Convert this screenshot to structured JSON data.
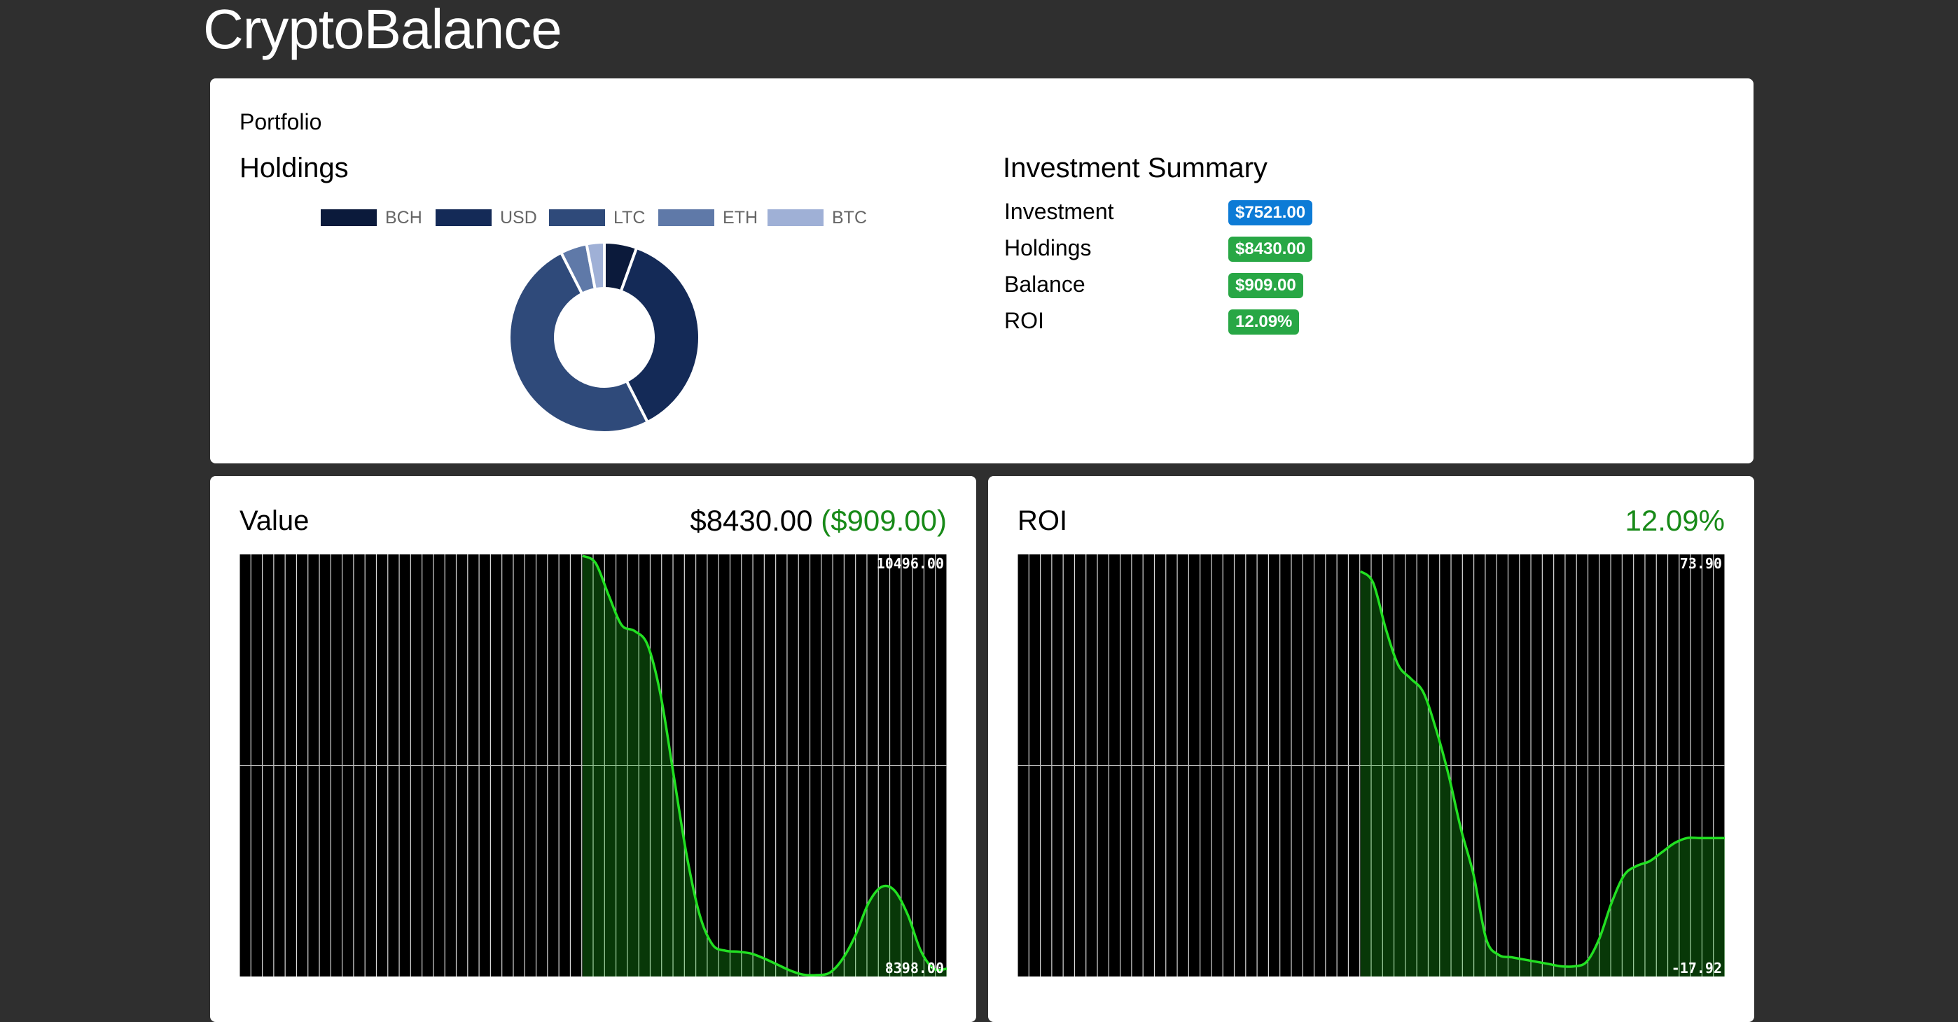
{
  "app": {
    "title": "CryptoBalance"
  },
  "portfolio": {
    "label": "Portfolio",
    "holdings_title": "Holdings",
    "summary_title": "Investment Summary",
    "legend": [
      {
        "label": "BCH",
        "color": "#0b1a3b"
      },
      {
        "label": "USD",
        "color": "#142a57"
      },
      {
        "label": "LTC",
        "color": "#2f4a7a"
      },
      {
        "label": "ETH",
        "color": "#5f79a8"
      },
      {
        "label": "BTC",
        "color": "#9fb0d6"
      }
    ],
    "summary": [
      {
        "key": "Investment",
        "value": "$7521.00",
        "color": "#0d7bd6"
      },
      {
        "key": "Holdings",
        "value": "$8430.00",
        "color": "#28a745"
      },
      {
        "key": "Balance",
        "value": "$909.00",
        "color": "#28a745"
      },
      {
        "key": "ROI",
        "value": "12.09%",
        "color": "#28a745"
      }
    ]
  },
  "value_panel": {
    "title": "Value",
    "amount": "$8430.00",
    "change": "($909.00)",
    "axis_max": "10496.00",
    "axis_min": "8398.00"
  },
  "roi_panel": {
    "title": "ROI",
    "amount": "12.09%",
    "axis_max": "73.90",
    "axis_min": "-17.92"
  },
  "chart_data": [
    {
      "type": "pie",
      "title": "Holdings",
      "categories": [
        "BCH",
        "USD",
        "LTC",
        "ETH",
        "BTC"
      ],
      "values": [
        5.5,
        37,
        50,
        4.5,
        3
      ]
    },
    {
      "type": "area",
      "title": "Value",
      "ylim": [
        8398.0,
        10496.0
      ],
      "series": [
        {
          "values": [
            10496,
            10460,
            10300,
            10150,
            10120,
            10050,
            9800,
            9400,
            9000,
            8700,
            8550,
            8520,
            8515,
            8505,
            8480,
            8450,
            8420,
            8400,
            8398,
            8410,
            8480,
            8600,
            8760,
            8840,
            8820,
            8700,
            8520,
            8430,
            8430
          ]
        }
      ]
    },
    {
      "type": "area",
      "title": "ROI",
      "ylim": [
        -17.92,
        73.9
      ],
      "series": [
        {
          "values": [
            70.5,
            68,
            58,
            50,
            47,
            44,
            36,
            26,
            14,
            4,
            -10,
            -13.5,
            -14,
            -14.5,
            -15,
            -15.5,
            -16,
            -16,
            -15,
            -10,
            -2,
            4,
            6,
            7,
            9,
            11,
            12.1,
            12.09,
            12.09,
            12.09
          ]
        }
      ]
    }
  ]
}
